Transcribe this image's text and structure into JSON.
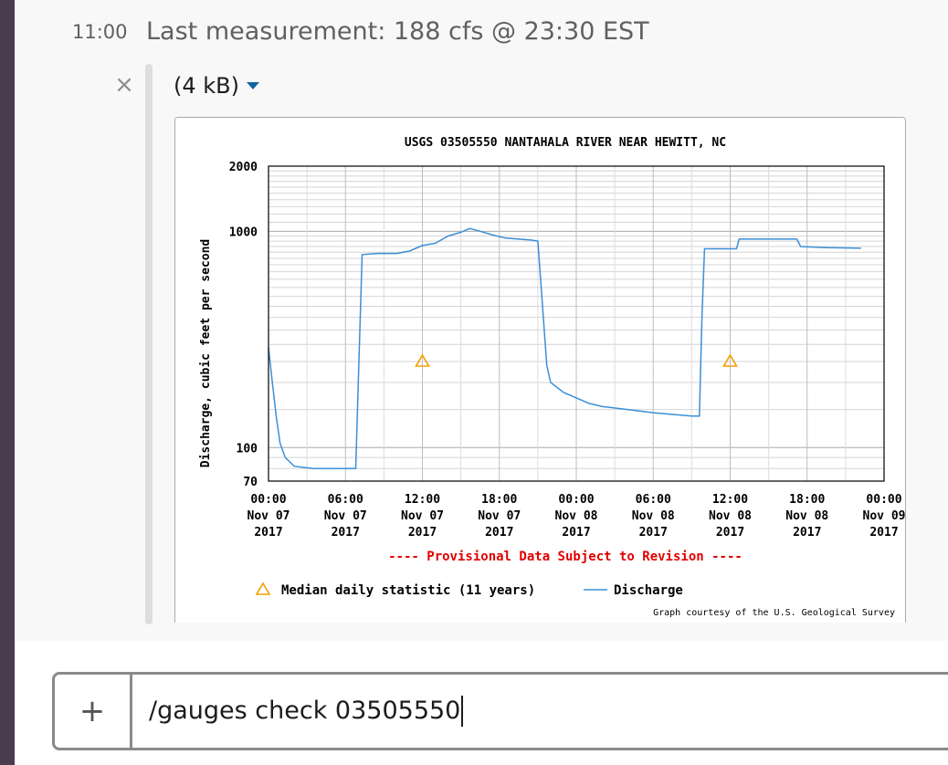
{
  "message": {
    "timestamp": "11:00",
    "text": "Last measurement: 188 cfs @ 23:30 EST"
  },
  "attachment": {
    "size_label": "(4 kB)",
    "close_icon": "close-icon",
    "caret_icon": "caret-down-icon"
  },
  "chart_data": {
    "type": "line",
    "title": "USGS 03505550 NANTAHALA RIVER NEAR HEWITT, NC",
    "ylabel": "Discharge, cubic feet per second",
    "y_scale": "log",
    "ylim": [
      70,
      2000
    ],
    "y_ticks": [
      "2000",
      "1000",
      "100",
      "70"
    ],
    "x_unit": "hours after Nov 07 2017 00:00",
    "xlim": [
      0,
      48
    ],
    "x_ticks": [
      {
        "time": "00:00",
        "date": "Nov 07",
        "year": "2017"
      },
      {
        "time": "06:00",
        "date": "Nov 07",
        "year": "2017"
      },
      {
        "time": "12:00",
        "date": "Nov 07",
        "year": "2017"
      },
      {
        "time": "18:00",
        "date": "Nov 07",
        "year": "2017"
      },
      {
        "time": "00:00",
        "date": "Nov 08",
        "year": "2017"
      },
      {
        "time": "06:00",
        "date": "Nov 08",
        "year": "2017"
      },
      {
        "time": "12:00",
        "date": "Nov 08",
        "year": "2017"
      },
      {
        "time": "18:00",
        "date": "Nov 08",
        "year": "2017"
      },
      {
        "time": "00:00",
        "date": "Nov 09",
        "year": "2017"
      }
    ],
    "series": [
      {
        "name": "Discharge",
        "color": "#3a8fd8",
        "points": [
          [
            0,
            290
          ],
          [
            0.3,
            200
          ],
          [
            0.6,
            140
          ],
          [
            0.9,
            105
          ],
          [
            1.3,
            90
          ],
          [
            2.0,
            82
          ],
          [
            3.5,
            80
          ],
          [
            5.5,
            80
          ],
          [
            6.8,
            80
          ],
          [
            7.3,
            780
          ],
          [
            8.5,
            790
          ],
          [
            10.0,
            790
          ],
          [
            11.0,
            810
          ],
          [
            12.0,
            860
          ],
          [
            13.0,
            880
          ],
          [
            14.0,
            950
          ],
          [
            15.0,
            990
          ],
          [
            15.7,
            1030
          ],
          [
            16.5,
            1000
          ],
          [
            17.5,
            960
          ],
          [
            18.5,
            930
          ],
          [
            19.5,
            920
          ],
          [
            20.5,
            910
          ],
          [
            21.0,
            900
          ],
          [
            21.7,
            240
          ],
          [
            22.0,
            200
          ],
          [
            23.0,
            180
          ],
          [
            25.0,
            160
          ],
          [
            26.0,
            155
          ],
          [
            28.0,
            150
          ],
          [
            30.0,
            145
          ],
          [
            33.0,
            140
          ],
          [
            33.6,
            140
          ],
          [
            33.8,
            400
          ],
          [
            34.0,
            830
          ],
          [
            36.5,
            830
          ],
          [
            36.7,
            920
          ],
          [
            40.0,
            920
          ],
          [
            41.2,
            920
          ],
          [
            41.5,
            850
          ],
          [
            43.5,
            840
          ],
          [
            46.2,
            835
          ]
        ]
      },
      {
        "name": "Median daily statistic (11 years)",
        "color": "#f2a000",
        "marker": "triangle",
        "points": [
          [
            12,
            250
          ],
          [
            36,
            250
          ]
        ]
      }
    ],
    "annotations": [
      "---- Provisional Data Subject to Revision ----",
      "Graph courtesy of the U.S. Geological Survey"
    ],
    "legend_position": "bottom",
    "grid": true
  },
  "composer": {
    "plus_label": "+",
    "input_value": "/gauges check 03505550"
  }
}
